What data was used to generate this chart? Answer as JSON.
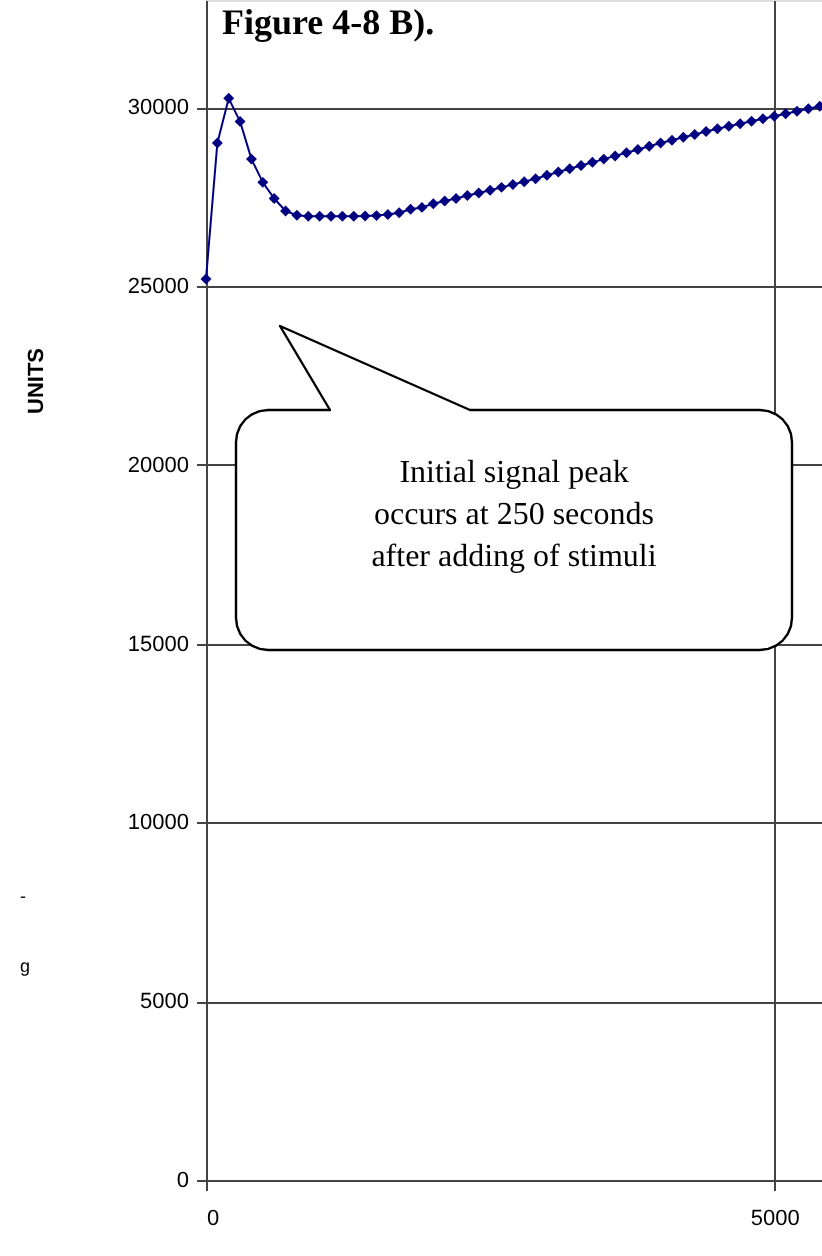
{
  "chart_data": {
    "type": "line",
    "title": "Figure 4-8 B).",
    "ylabel": "UNITS",
    "x": [
      0,
      100,
      200,
      300,
      400,
      500,
      600,
      700,
      800,
      900,
      1000,
      1100,
      1200,
      1300,
      1400,
      1500,
      1600,
      1700,
      1800,
      1900,
      2000,
      2100,
      2200,
      2300,
      2400,
      2500,
      2600,
      2700,
      2800,
      2900,
      3000,
      3100,
      3200,
      3300,
      3400,
      3500,
      3600,
      3700,
      3800,
      3900,
      4000,
      4100,
      4200,
      4300,
      4400,
      4500,
      4600,
      4700,
      4800,
      4900,
      5000,
      5100,
      5200,
      5300,
      5400
    ],
    "series": [
      {
        "color": "#000080",
        "values": [
          25200,
          29000,
          30250,
          29600,
          28550,
          27900,
          27450,
          27100,
          26980,
          26950,
          26950,
          26950,
          26950,
          26950,
          26960,
          26970,
          27000,
          27050,
          27150,
          27200,
          27300,
          27380,
          27450,
          27530,
          27600,
          27680,
          27760,
          27840,
          27920,
          28000,
          28100,
          28190,
          28280,
          28370,
          28460,
          28550,
          28640,
          28730,
          28820,
          28910,
          29000,
          29080,
          29160,
          29240,
          29320,
          29400,
          29470,
          29540,
          29610,
          29680,
          29750,
          29820,
          29890,
          29960,
          30030
        ]
      }
    ],
    "xlim": [
      0,
      5420
    ],
    "ylim": [
      0,
      33000
    ],
    "xticks": [
      0,
      5000
    ],
    "yticks": [
      0,
      5000,
      10000,
      15000,
      20000,
      25000,
      30000
    ],
    "grid": true,
    "marker": "diamond",
    "line_style": "solid",
    "annotations": [
      "Initial signal peak occurs at 250 seconds after adding of stimuli",
      "-",
      "g"
    ]
  }
}
